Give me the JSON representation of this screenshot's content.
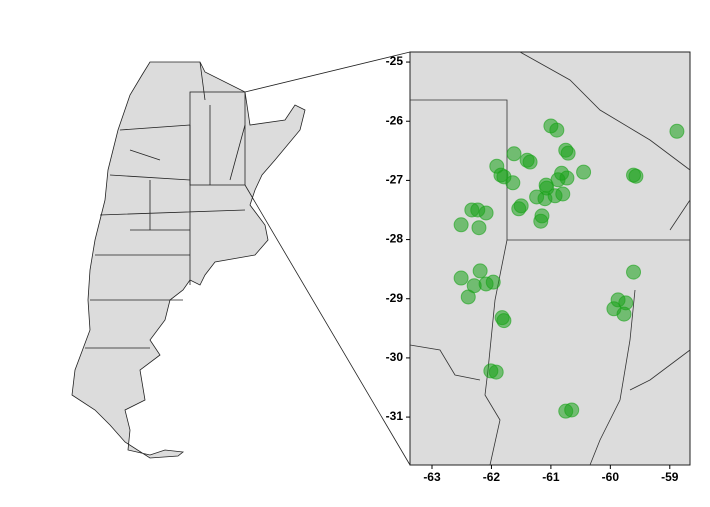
{
  "chart_data": {
    "type": "scatter",
    "color": "#19a319",
    "x": [
      -61.0,
      -60.9,
      -58.88,
      -61.62,
      -61.4,
      -61.35,
      -60.75,
      -60.71,
      -61.91,
      -61.84,
      -61.79,
      -61.64,
      -60.45,
      -59.57,
      -59.61,
      -60.82,
      -60.73,
      -61.08,
      -61.07,
      -61.24,
      -61.1,
      -60.93,
      -60.8,
      -60.88,
      -61.5,
      -61.54,
      -62.09,
      -62.33,
      -62.23,
      -61.15,
      -61.17,
      -62.51,
      -62.21,
      -59.61,
      -62.51,
      -62.19,
      -62.29,
      -62.09,
      -61.97,
      -62.39,
      -61.82,
      -61.79,
      -59.87,
      -59.74,
      -59.94,
      -59.77,
      -62.01,
      -61.92,
      -60.75,
      -60.65
    ],
    "values": [
      -26.08,
      -26.15,
      -26.17,
      -26.55,
      -26.66,
      -26.69,
      -26.49,
      -26.54,
      -26.76,
      -26.91,
      -26.94,
      -27.04,
      -26.86,
      -26.93,
      -26.91,
      -26.88,
      -26.96,
      -27.08,
      -27.13,
      -27.28,
      -27.31,
      -27.26,
      -27.23,
      -26.99,
      -27.43,
      -27.48,
      -27.55,
      -27.5,
      -27.5,
      -27.6,
      -27.69,
      -27.75,
      -27.8,
      -28.55,
      -28.65,
      -28.53,
      -28.78,
      -28.75,
      -28.72,
      -28.97,
      -29.32,
      -29.37,
      -29.02,
      -29.07,
      -29.17,
      -29.26,
      -30.22,
      -30.24,
      -30.9,
      -30.88
    ],
    "xlim": [
      -63.37,
      -58.66
    ],
    "ylim": [
      -31.81,
      -24.83
    ],
    "xticks": [
      -63,
      -62,
      -61,
      -60,
      -59
    ],
    "yticks": [
      -25,
      -26,
      -27,
      -28,
      -29,
      -30,
      -31
    ]
  }
}
